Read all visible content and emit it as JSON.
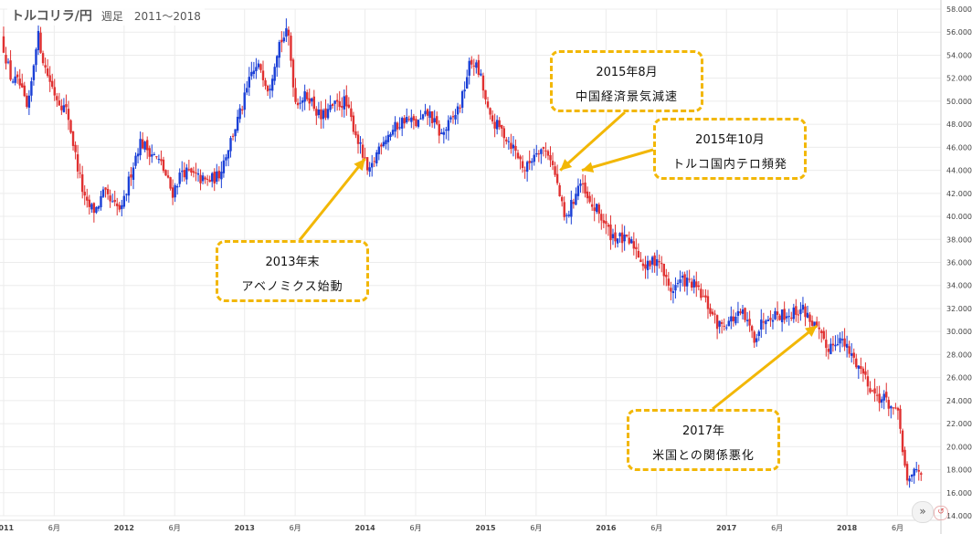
{
  "title": {
    "main": "トルコリラ/円",
    "sub": "週足　2011〜2018"
  },
  "annotations": [
    {
      "line1": "2013年末",
      "line2": "アベノミクス始動"
    },
    {
      "line1": "2015年8月",
      "line2": "中国経済景気減速"
    },
    {
      "line1": "2015年10月",
      "line2": "トルコ国内テロ頻発"
    },
    {
      "line1": "2017年",
      "line2": "米国との関係悪化"
    }
  ],
  "colors": {
    "up": "#1a3fd6",
    "down": "#e03030",
    "grid": "#ececec",
    "annotation": "#f2b705",
    "axis_text": "#444444"
  },
  "controls": {
    "scroll_icon": "»",
    "reset_icon": "↺"
  },
  "chart_data": {
    "type": "candlestick",
    "title": "トルコリラ/円 週足 2011〜2018",
    "ylim": [
      14,
      58
    ],
    "y_ticks": [
      "14.000",
      "16.000",
      "18.000",
      "20.000",
      "22.000",
      "24.000",
      "26.000",
      "28.000",
      "30.000",
      "32.000",
      "34.000",
      "36.000",
      "38.000",
      "40.000",
      "42.000",
      "44.000",
      "46.000",
      "48.000",
      "50.000",
      "52.000",
      "54.000",
      "56.000",
      "58.000"
    ],
    "x_ticks": [
      {
        "label": "2011",
        "t": 2011.0
      },
      {
        "label": "6月",
        "t": 2011.42
      },
      {
        "label": "2012",
        "t": 2012.0
      },
      {
        "label": "6月",
        "t": 2012.42
      },
      {
        "label": "2013",
        "t": 2013.0
      },
      {
        "label": "6月",
        "t": 2013.42
      },
      {
        "label": "2014",
        "t": 2014.0
      },
      {
        "label": "6月",
        "t": 2014.42
      },
      {
        "label": "2015",
        "t": 2015.0
      },
      {
        "label": "6月",
        "t": 2015.42
      },
      {
        "label": "2016",
        "t": 2016.0
      },
      {
        "label": "6月",
        "t": 2016.42
      },
      {
        "label": "2017",
        "t": 2017.0
      },
      {
        "label": "6月",
        "t": 2017.42
      },
      {
        "label": "2018",
        "t": 2018.0
      },
      {
        "label": "6月",
        "t": 2018.42
      }
    ],
    "price_path": [
      [
        2011.0,
        55.5
      ],
      [
        2011.08,
        52.0
      ],
      [
        2011.15,
        51.5
      ],
      [
        2011.22,
        49.0
      ],
      [
        2011.3,
        56.0
      ],
      [
        2011.36,
        53.0
      ],
      [
        2011.45,
        50.5
      ],
      [
        2011.55,
        49.0
      ],
      [
        2011.62,
        45.0
      ],
      [
        2011.7,
        41.0
      ],
      [
        2011.78,
        40.5
      ],
      [
        2011.85,
        42.0
      ],
      [
        2011.92,
        41.0
      ],
      [
        2012.0,
        40.5
      ],
      [
        2012.08,
        44.0
      ],
      [
        2012.15,
        46.5
      ],
      [
        2012.25,
        45.5
      ],
      [
        2012.33,
        44.5
      ],
      [
        2012.42,
        42.0
      ],
      [
        2012.5,
        44.0
      ],
      [
        2012.6,
        43.5
      ],
      [
        2012.7,
        43.0
      ],
      [
        2012.8,
        43.5
      ],
      [
        2012.9,
        46.5
      ],
      [
        2013.0,
        49.5
      ],
      [
        2013.08,
        52.5
      ],
      [
        2013.15,
        53.0
      ],
      [
        2013.22,
        51.0
      ],
      [
        2013.3,
        55.0
      ],
      [
        2013.38,
        56.0
      ],
      [
        2013.44,
        50.0
      ],
      [
        2013.55,
        50.5
      ],
      [
        2013.65,
        48.5
      ],
      [
        2013.75,
        49.5
      ],
      [
        2013.85,
        50.0
      ],
      [
        2013.95,
        47.0
      ],
      [
        2014.05,
        43.5
      ],
      [
        2014.15,
        46.5
      ],
      [
        2014.25,
        47.5
      ],
      [
        2014.35,
        48.5
      ],
      [
        2014.45,
        48.0
      ],
      [
        2014.55,
        49.0
      ],
      [
        2014.65,
        47.0
      ],
      [
        2014.75,
        48.5
      ],
      [
        2014.82,
        50.0
      ],
      [
        2014.88,
        53.0
      ],
      [
        2014.92,
        53.5
      ],
      [
        2014.98,
        52.0
      ],
      [
        2015.05,
        48.5
      ],
      [
        2015.15,
        47.5
      ],
      [
        2015.25,
        46.0
      ],
      [
        2015.35,
        44.0
      ],
      [
        2015.45,
        46.0
      ],
      [
        2015.55,
        45.5
      ],
      [
        2015.62,
        42.5
      ],
      [
        2015.68,
        39.5
      ],
      [
        2015.75,
        41.5
      ],
      [
        2015.8,
        43.0
      ],
      [
        2015.88,
        41.0
      ],
      [
        2015.95,
        40.5
      ],
      [
        2016.05,
        38.5
      ],
      [
        2016.15,
        38.0
      ],
      [
        2016.25,
        37.5
      ],
      [
        2016.35,
        35.5
      ],
      [
        2016.45,
        36.5
      ],
      [
        2016.55,
        33.5
      ],
      [
        2016.65,
        34.5
      ],
      [
        2016.75,
        34.0
      ],
      [
        2016.85,
        32.5
      ],
      [
        2016.95,
        30.5
      ],
      [
        2017.05,
        31.0
      ],
      [
        2017.15,
        31.5
      ],
      [
        2017.25,
        29.5
      ],
      [
        2017.35,
        31.5
      ],
      [
        2017.45,
        31.5
      ],
      [
        2017.55,
        31.5
      ],
      [
        2017.65,
        32.0
      ],
      [
        2017.75,
        30.5
      ],
      [
        2017.85,
        28.5
      ],
      [
        2017.95,
        29.5
      ],
      [
        2018.05,
        28.0
      ],
      [
        2018.15,
        26.5
      ],
      [
        2018.25,
        24.5
      ],
      [
        2018.35,
        24.0
      ],
      [
        2018.45,
        22.5
      ],
      [
        2018.52,
        16.5
      ],
      [
        2018.58,
        18.0
      ],
      [
        2018.62,
        18.0
      ]
    ]
  }
}
